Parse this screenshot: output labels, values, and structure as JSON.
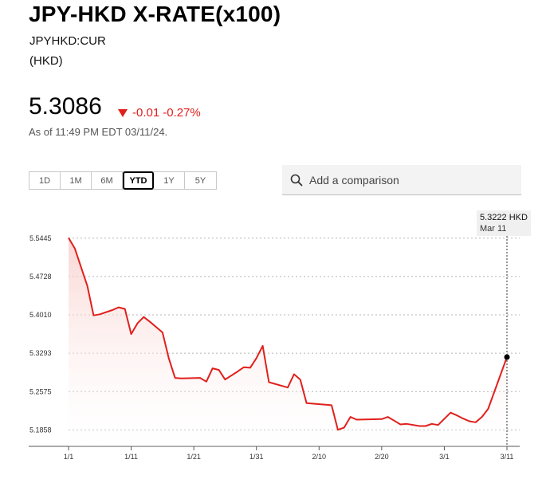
{
  "header": {
    "title": "JPY-HKD X-RATE(x100)",
    "ticker": "JPYHKD:CUR",
    "currency": "(HKD)"
  },
  "quote": {
    "price": "5.3086",
    "change": "-0.01",
    "change_pct": "-0.27%",
    "as_of": "As of 11:49 PM EDT 03/11/24."
  },
  "ranges": [
    "1D",
    "1M",
    "6M",
    "YTD",
    "1Y",
    "5Y"
  ],
  "active_range": "YTD",
  "compare": {
    "placeholder": "Add a comparison"
  },
  "tooltip": {
    "value": "5.3222 HKD",
    "date": "Mar 11"
  },
  "colors": {
    "line": "#e0201c",
    "negative": "#e0201c",
    "fill": "#fbe3e1"
  },
  "chart_data": {
    "type": "line",
    "y_ticks": [
      "5.5445",
      "5.4728",
      "5.4010",
      "5.3293",
      "5.2575",
      "5.1858"
    ],
    "x_ticks": [
      "1/1",
      "1/11",
      "1/21",
      "1/31",
      "2/10",
      "2/20",
      "3/1",
      "3/11"
    ],
    "ylim": [
      5.155,
      5.565
    ],
    "xlim": [
      0,
      70
    ],
    "grid": true,
    "series": [
      {
        "x": [
          0,
          1,
          3,
          4,
          5,
          7,
          8,
          9,
          10,
          11,
          12,
          13,
          14,
          15,
          16,
          17,
          18,
          21,
          22,
          23,
          24,
          25,
          27,
          28,
          29,
          30,
          31,
          32,
          35,
          36,
          37,
          38,
          42,
          43,
          44,
          45,
          46,
          50,
          51,
          52,
          53,
          54,
          56,
          57,
          58,
          59,
          61,
          62,
          63,
          64,
          65,
          66,
          67,
          70
        ],
        "y": [
          5.545,
          5.525,
          5.455,
          5.4,
          5.402,
          5.41,
          5.415,
          5.412,
          5.365,
          5.385,
          5.397,
          5.388,
          5.378,
          5.368,
          5.32,
          5.283,
          5.282,
          5.283,
          5.276,
          5.301,
          5.298,
          5.28,
          5.295,
          5.303,
          5.302,
          5.32,
          5.343,
          5.275,
          5.265,
          5.29,
          5.28,
          5.236,
          5.232,
          5.186,
          5.19,
          5.21,
          5.205,
          5.206,
          5.21,
          5.203,
          5.196,
          5.197,
          5.193,
          5.193,
          5.197,
          5.195,
          5.218,
          5.213,
          5.207,
          5.202,
          5.2,
          5.21,
          5.225,
          5.322
        ]
      }
    ]
  }
}
